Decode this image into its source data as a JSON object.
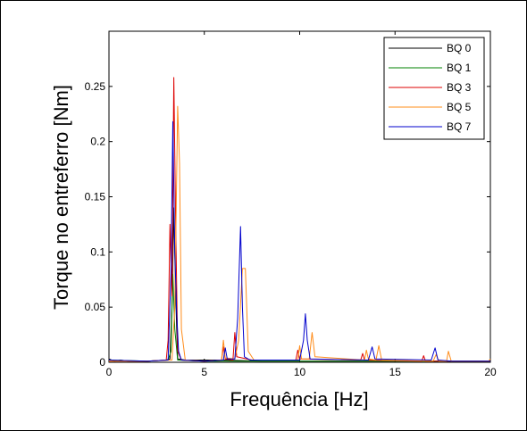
{
  "chart_data": {
    "type": "line",
    "xlabel": "Frequência [Hz]",
    "ylabel": "Torque no entreferro [Nm]",
    "xlim": [
      0,
      20
    ],
    "ylim": [
      0,
      0.3
    ],
    "xticks": [
      "0",
      "5",
      "10",
      "15",
      "20"
    ],
    "yticks": [
      "0",
      "0.05",
      "0.1",
      "0.15",
      "0.2",
      "0.25"
    ],
    "grid": false,
    "legend_position": "top-right",
    "series": [
      {
        "name": "BQ 0",
        "color": "#000000",
        "points": [
          [
            0,
            0.003
          ],
          [
            0.3,
            0.001
          ],
          [
            0.6,
            0.002
          ],
          [
            1,
            0.001
          ],
          [
            2,
            0.001
          ],
          [
            3,
            0.002
          ],
          [
            3.2,
            0.003
          ],
          [
            3.3,
            0.05
          ],
          [
            3.4,
            0.14
          ],
          [
            3.5,
            0.06
          ],
          [
            3.6,
            0.003
          ],
          [
            4,
            0.002
          ],
          [
            6,
            0.002
          ],
          [
            8,
            0.001
          ],
          [
            10,
            0.001
          ],
          [
            12,
            0.001
          ],
          [
            14,
            0.001
          ],
          [
            16,
            0.001
          ],
          [
            18,
            0.001
          ],
          [
            20,
            0.001
          ]
        ]
      },
      {
        "name": "BQ 1",
        "color": "#008000",
        "points": [
          [
            0,
            0.002
          ],
          [
            2,
            0.001
          ],
          [
            3.1,
            0.002
          ],
          [
            3.25,
            0.01
          ],
          [
            3.35,
            0.08
          ],
          [
            3.45,
            0.03
          ],
          [
            3.6,
            0.002
          ],
          [
            5,
            0.001
          ],
          [
            8,
            0.001
          ],
          [
            12,
            0.001
          ],
          [
            16,
            0.001
          ],
          [
            20,
            0.001
          ]
        ]
      },
      {
        "name": "BQ 3",
        "color": "#dd0000",
        "points": [
          [
            0,
            0.001
          ],
          [
            2,
            0.001
          ],
          [
            3.0,
            0.002
          ],
          [
            3.1,
            0.02
          ],
          [
            3.2,
            0.125
          ],
          [
            3.3,
            0.06
          ],
          [
            3.4,
            0.258
          ],
          [
            3.5,
            0.125
          ],
          [
            3.6,
            0.01
          ],
          [
            3.8,
            0.002
          ],
          [
            5,
            0.001
          ],
          [
            5.9,
            0.002
          ],
          [
            6.0,
            0.014
          ],
          [
            6.1,
            0.003
          ],
          [
            6.5,
            0.002
          ],
          [
            6.6,
            0.027
          ],
          [
            6.7,
            0.005
          ],
          [
            7.5,
            0.002
          ],
          [
            9.8,
            0.002
          ],
          [
            9.9,
            0.011
          ],
          [
            10.0,
            0.003
          ],
          [
            13.2,
            0.002
          ],
          [
            13.3,
            0.008
          ],
          [
            13.4,
            0.002
          ],
          [
            16.4,
            0.001
          ],
          [
            16.5,
            0.006
          ],
          [
            16.6,
            0.001
          ],
          [
            18,
            0.001
          ],
          [
            20,
            0.001
          ]
        ]
      },
      {
        "name": "BQ 5",
        "color": "#ff8c1a",
        "points": [
          [
            0,
            0.001
          ],
          [
            2,
            0.001
          ],
          [
            3.3,
            0.002
          ],
          [
            3.45,
            0.05
          ],
          [
            3.6,
            0.232
          ],
          [
            3.7,
            0.18
          ],
          [
            3.8,
            0.03
          ],
          [
            4.0,
            0.002
          ],
          [
            5,
            0.001
          ],
          [
            5.9,
            0.002
          ],
          [
            6.0,
            0.02
          ],
          [
            6.1,
            0.004
          ],
          [
            6.6,
            0.003
          ],
          [
            6.8,
            0.02
          ],
          [
            7.0,
            0.085
          ],
          [
            7.15,
            0.085
          ],
          [
            7.3,
            0.01
          ],
          [
            7.6,
            0.002
          ],
          [
            9.9,
            0.002
          ],
          [
            10.0,
            0.015
          ],
          [
            10.1,
            0.003
          ],
          [
            10.5,
            0.003
          ],
          [
            10.65,
            0.027
          ],
          [
            10.8,
            0.005
          ],
          [
            13.4,
            0.002
          ],
          [
            13.5,
            0.011
          ],
          [
            13.6,
            0.003
          ],
          [
            14.0,
            0.002
          ],
          [
            14.15,
            0.015
          ],
          [
            14.3,
            0.002
          ],
          [
            17.0,
            0.001
          ],
          [
            17.15,
            0.007
          ],
          [
            17.3,
            0.001
          ],
          [
            17.7,
            0.001
          ],
          [
            17.8,
            0.01
          ],
          [
            17.95,
            0.001
          ],
          [
            19.9,
            0.001
          ],
          [
            20,
            0.003
          ]
        ]
      },
      {
        "name": "BQ 7",
        "color": "#0000cc",
        "points": [
          [
            0,
            0.002
          ],
          [
            2,
            0.001
          ],
          [
            3.1,
            0.002
          ],
          [
            3.25,
            0.08
          ],
          [
            3.35,
            0.218
          ],
          [
            3.45,
            0.1
          ],
          [
            3.55,
            0.045
          ],
          [
            3.65,
            0.01
          ],
          [
            3.8,
            0.002
          ],
          [
            5,
            0.001
          ],
          [
            6.0,
            0.002
          ],
          [
            6.1,
            0.013
          ],
          [
            6.2,
            0.003
          ],
          [
            6.6,
            0.003
          ],
          [
            6.75,
            0.04
          ],
          [
            6.9,
            0.123
          ],
          [
            7.0,
            0.05
          ],
          [
            7.1,
            0.005
          ],
          [
            7.4,
            0.002
          ],
          [
            10.0,
            0.002
          ],
          [
            10.2,
            0.02
          ],
          [
            10.3,
            0.044
          ],
          [
            10.4,
            0.02
          ],
          [
            10.55,
            0.003
          ],
          [
            13.6,
            0.002
          ],
          [
            13.8,
            0.014
          ],
          [
            13.95,
            0.003
          ],
          [
            16.9,
            0.002
          ],
          [
            17.1,
            0.013
          ],
          [
            17.25,
            0.002
          ],
          [
            18,
            0.001
          ],
          [
            20,
            0.001
          ]
        ]
      }
    ]
  }
}
